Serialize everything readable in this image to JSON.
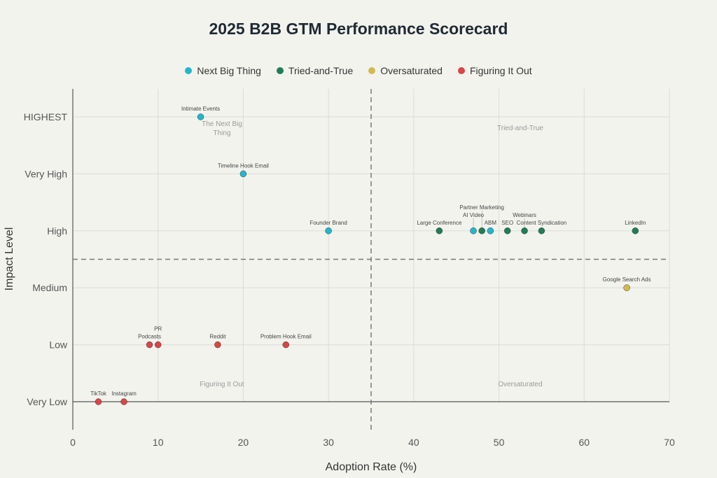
{
  "chart_data": {
    "type": "scatter",
    "title": "2025 B2B GTM Performance Scorecard",
    "xlabel": "Adoption Rate (%)",
    "ylabel": "Impact Level",
    "xlim": [
      0,
      70
    ],
    "xticks": [
      0,
      10,
      20,
      30,
      40,
      50,
      60,
      70
    ],
    "ycategories": [
      "Very Low",
      "Low",
      "Medium",
      "High",
      "Very High",
      "HIGHEST"
    ],
    "grid": true,
    "legend_position": "top",
    "divider_x": 35,
    "divider_y": "between Medium and High",
    "quadrant_labels": {
      "top_left": "The Next Big Thing",
      "top_right": "Tried-and-True",
      "bottom_left": "Figuring It Out",
      "bottom_right": "Oversaturated"
    },
    "series": [
      {
        "name": "Next Big Thing",
        "color": "#1fb8cd",
        "points": [
          {
            "label": "Intimate Events",
            "x": 15,
            "y": "HIGHEST"
          },
          {
            "label": "Timeline Hook Email",
            "x": 20,
            "y": "Very High"
          },
          {
            "label": "Founder Brand",
            "x": 30,
            "y": "High"
          },
          {
            "label": "AI Video",
            "x": 47,
            "y": "High"
          },
          {
            "label": "ABM",
            "x": 49,
            "y": "High"
          }
        ]
      },
      {
        "name": "Tried-and-True",
        "color": "#1e7e56",
        "points": [
          {
            "label": "Large Conference",
            "x": 43,
            "y": "High"
          },
          {
            "label": "Partner Marketing",
            "x": 48,
            "y": "High"
          },
          {
            "label": "SEO",
            "x": 51,
            "y": "High"
          },
          {
            "label": "Webinars",
            "x": 53,
            "y": "High"
          },
          {
            "label": "Content Syndication",
            "x": 55,
            "y": "High"
          },
          {
            "label": "LinkedIn",
            "x": 66,
            "y": "High"
          }
        ]
      },
      {
        "name": "Oversaturated",
        "color": "#d2ba4c",
        "points": [
          {
            "label": "Google Search Ads",
            "x": 65,
            "y": "Medium"
          }
        ]
      },
      {
        "name": "Figuring It Out",
        "color": "#db4545",
        "points": [
          {
            "label": "Podcasts",
            "x": 9,
            "y": "Low"
          },
          {
            "label": "PR",
            "x": 10,
            "y": "Low"
          },
          {
            "label": "Reddit",
            "x": 17,
            "y": "Low"
          },
          {
            "label": "Problem Hook Email",
            "x": 25,
            "y": "Low"
          },
          {
            "label": "TikTok",
            "x": 3,
            "y": "Very Low"
          },
          {
            "label": "Instagram",
            "x": 6,
            "y": "Very Low"
          }
        ]
      }
    ]
  }
}
